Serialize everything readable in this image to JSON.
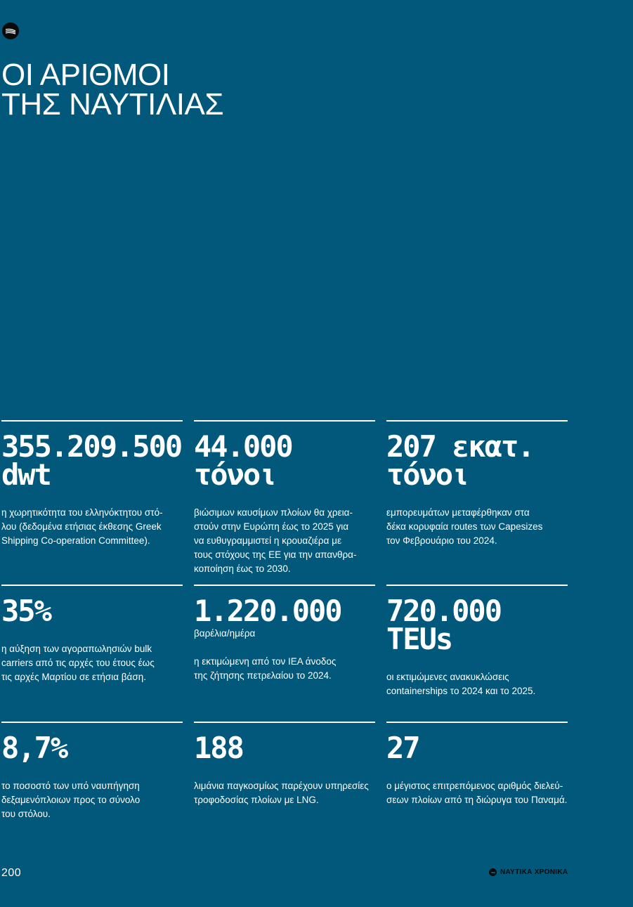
{
  "header": {
    "logo_icon": "waves-icon",
    "title_line1": "ΟΙ ΑΡΙΘΜΟΙ",
    "title_line2": "ΤΗΣ ΝΑΥΤΙΛΙΑΣ"
  },
  "stats": [
    {
      "value_line1": "355.209.500",
      "value_line2": "dwt",
      "sub": "",
      "desc": "η χωρητικότητα του ελληνόκτητου στό-\nλου (δεδομένα ετήσιας έκθεσης Greek\nShipping Co-operation Committee)."
    },
    {
      "value_line1": "44.000",
      "value_line2": "τόνοι",
      "sub": "",
      "desc": "βιώσιμων καυσίμων πλοίων θα χρεια-\nστούν στην Ευρώπη έως το 2025 για\nνα ευθυγραμμιστεί η κρουαζιέρα με\nτους στόχους της ΕΕ για την απανθρα-\nκοποίηση έως το 2030."
    },
    {
      "value_line1": "207 εκατ.",
      "value_line2": "τόνοι",
      "sub": "",
      "desc": "εμπορευμάτων μεταφέρθηκαν στα\nδέκα κορυφαία routes των Capesizes\nτον Φεβρουάριο του 2024."
    },
    {
      "value_line1": "35%",
      "value_line2": "",
      "sub": "",
      "desc": "η αύξηση των αγοραπωλησιών bulk\ncarriers από τις αρχές του έτους έως\nτις αρχές Μαρτίου σε ετήσια βάση."
    },
    {
      "value_line1": "1.220.000",
      "value_line2": "",
      "sub": "βαρέλια/ημέρα",
      "desc": "η εκτιμώμενη από τον ΙΕΑ άνοδος\nτης ζήτησης πετρελαίου το 2024."
    },
    {
      "value_line1": "720.000",
      "value_line2": "TEUs",
      "sub": "",
      "desc": "οι εκτιμώμενες ανακυκλώσεις\ncontainerships το 2024 και το 2025."
    },
    {
      "value_line1": "8,7%",
      "value_line2": "",
      "sub": "",
      "desc": "το ποσοστό των υπό ναυπήγηση\nδεξαμενόπλοιων προς το σύνολο\nτου στόλου."
    },
    {
      "value_line1": "188",
      "value_line2": "",
      "sub": "",
      "desc": "λιμάνια παγκοσμίως παρέχουν υπηρεσίες\nτροφοδοσίας πλοίων με LNG."
    },
    {
      "value_line1": "27",
      "value_line2": "",
      "sub": "",
      "desc": "ο μέγιστος επιτρεπόμενος αριθμός διελεύ-\nσεων πλοίων από τη διώρυγα του Παναμά."
    }
  ],
  "footer": {
    "page_number": "200",
    "brand_icon": "brand-waves-icon",
    "brand_name": "ΝΑΥΤΙΚΑ ΧΡΟΝΙΚΑ"
  },
  "colors": {
    "background": "#02587a",
    "text": "#ffffff",
    "logo": "#0a0a0a"
  }
}
